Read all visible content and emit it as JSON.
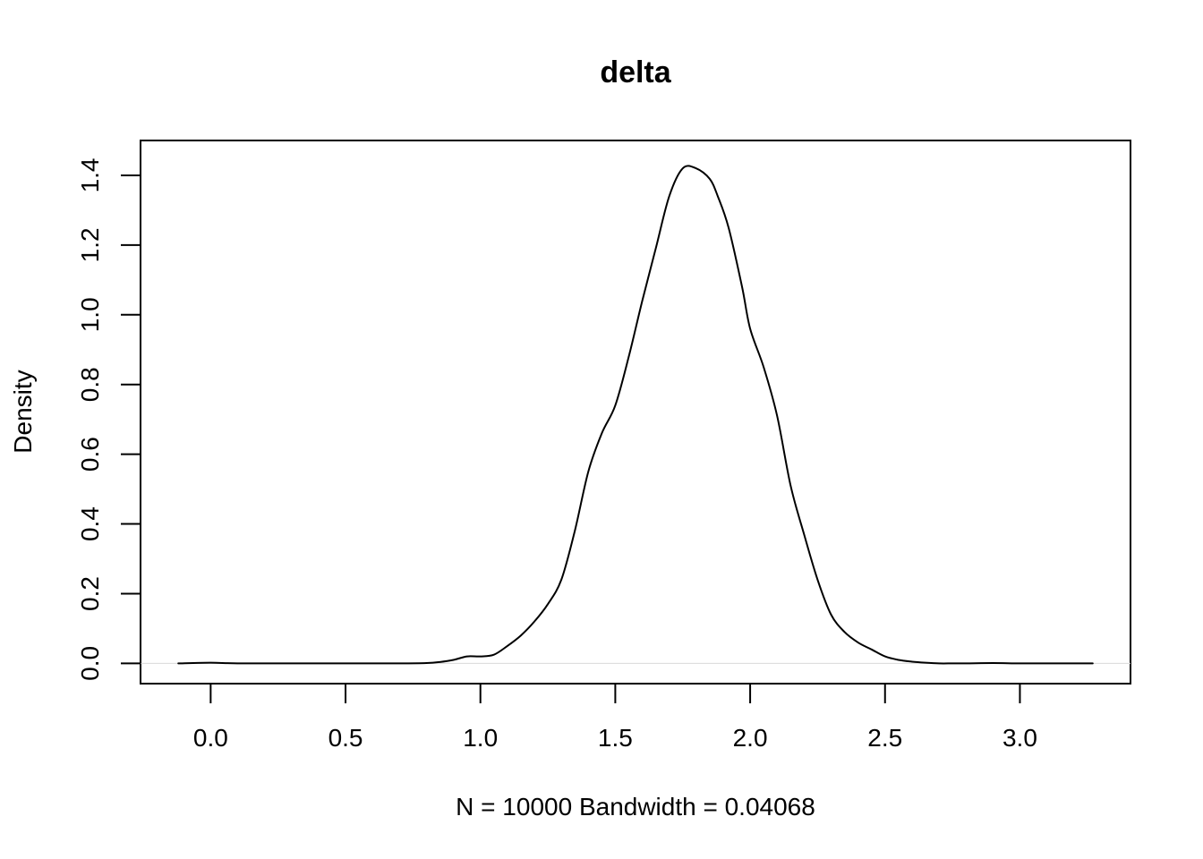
{
  "chart_data": {
    "type": "line",
    "title": "delta",
    "xlabel": "N = 10000   Bandwidth = 0.04068",
    "ylabel": "Density",
    "xlim": [
      -0.26,
      3.41
    ],
    "ylim": [
      -0.058,
      1.5
    ],
    "x_ticks": [
      0.0,
      0.5,
      1.0,
      1.5,
      2.0,
      2.5,
      3.0
    ],
    "x_tick_labels": [
      "0.0",
      "0.5",
      "1.0",
      "1.5",
      "2.0",
      "2.5",
      "3.0"
    ],
    "y_ticks": [
      0.0,
      0.2,
      0.4,
      0.6,
      0.8,
      1.0,
      1.2,
      1.4
    ],
    "y_tick_labels": [
      "0.0",
      "0.2",
      "0.4",
      "0.6",
      "0.8",
      "1.0",
      "1.2",
      "1.4"
    ],
    "grid": false,
    "baseline_y": 0.0,
    "series": [
      {
        "x": [
          -0.12,
          0.0,
          0.1,
          0.3,
          0.5,
          0.7,
          0.8,
          0.85,
          0.9,
          0.95,
          1.0,
          1.05,
          1.1,
          1.15,
          1.2,
          1.25,
          1.3,
          1.35,
          1.4,
          1.45,
          1.5,
          1.55,
          1.6,
          1.65,
          1.7,
          1.75,
          1.8,
          1.85,
          1.88,
          1.92,
          1.97,
          2.0,
          2.05,
          2.1,
          2.15,
          2.2,
          2.25,
          2.3,
          2.35,
          2.4,
          2.45,
          2.5,
          2.55,
          2.6,
          2.65,
          2.7,
          2.75,
          2.8,
          2.9,
          3.0,
          3.1,
          3.15,
          3.27
        ],
        "y": [
          0.0,
          0.002,
          0.0,
          0.0,
          0.0,
          0.0,
          0.001,
          0.004,
          0.01,
          0.02,
          0.02,
          0.025,
          0.05,
          0.08,
          0.12,
          0.17,
          0.24,
          0.38,
          0.55,
          0.66,
          0.74,
          0.88,
          1.04,
          1.19,
          1.34,
          1.42,
          1.42,
          1.39,
          1.34,
          1.25,
          1.08,
          0.96,
          0.85,
          0.71,
          0.51,
          0.37,
          0.24,
          0.14,
          0.09,
          0.06,
          0.04,
          0.02,
          0.01,
          0.005,
          0.002,
          0.0,
          0.0,
          0.0,
          0.001,
          0.0,
          0.0,
          0.0,
          0.0
        ]
      }
    ]
  }
}
